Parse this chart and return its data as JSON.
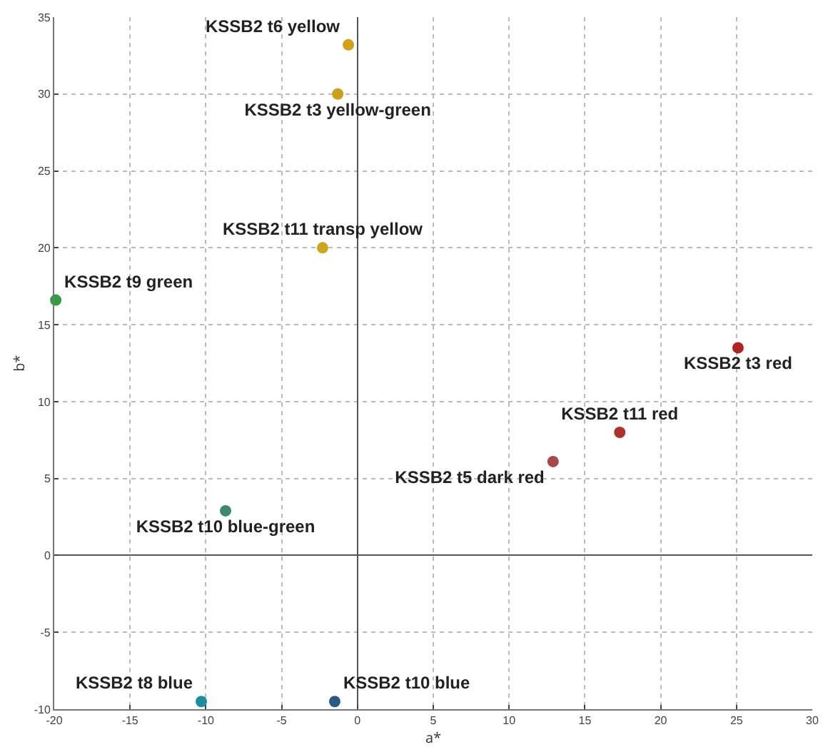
{
  "chart_data": {
    "type": "scatter",
    "xlabel": "a*",
    "ylabel": "b*",
    "xlim": [
      -20,
      30
    ],
    "ylim": [
      -10,
      35
    ],
    "xticks": [
      -20,
      -15,
      -10,
      -5,
      0,
      5,
      10,
      15,
      20,
      25,
      30
    ],
    "yticks": [
      -10,
      -5,
      0,
      5,
      10,
      15,
      20,
      25,
      30,
      35
    ],
    "grid": true,
    "legend": false,
    "marker": "circle",
    "series": [
      {
        "name": "KSSB2 t6 yellow",
        "color": "#d4a017",
        "x": [
          -0.6
        ],
        "values": [
          33.2
        ]
      },
      {
        "name": "KSSB2 t3 yellow-green",
        "color": "#c9a21a",
        "x": [
          -1.3
        ],
        "values": [
          30
        ]
      },
      {
        "name": "KSSB2 t11 transp yellow",
        "color": "#cfa520",
        "x": [
          -2.3
        ],
        "values": [
          20
        ]
      },
      {
        "name": "KSSB2 t9 green",
        "color": "#2e9e3e",
        "x": [
          -19.9
        ],
        "values": [
          16.6
        ]
      },
      {
        "name": "KSSB2 t3 red",
        "color": "#b22222",
        "x": [
          25.1
        ],
        "values": [
          13.5
        ]
      },
      {
        "name": "KSSB2 t11 red",
        "color": "#b03030",
        "x": [
          17.3
        ],
        "values": [
          8
        ]
      },
      {
        "name": "KSSB2 t5 dark red",
        "color": "#a8484a",
        "x": [
          12.9
        ],
        "values": [
          6.1
        ]
      },
      {
        "name": "KSSB2 t10 blue-green",
        "color": "#3d8a6e",
        "x": [
          -8.7
        ],
        "values": [
          2.9
        ]
      },
      {
        "name": "KSSB2 t8 blue",
        "color": "#1a8fa0",
        "x": [
          -10.3
        ],
        "values": [
          -9.5
        ]
      },
      {
        "name": "KSSB2 t10 blue",
        "color": "#2a5a8a",
        "x": [
          -1.5
        ],
        "values": [
          -9.5
        ]
      }
    ]
  }
}
